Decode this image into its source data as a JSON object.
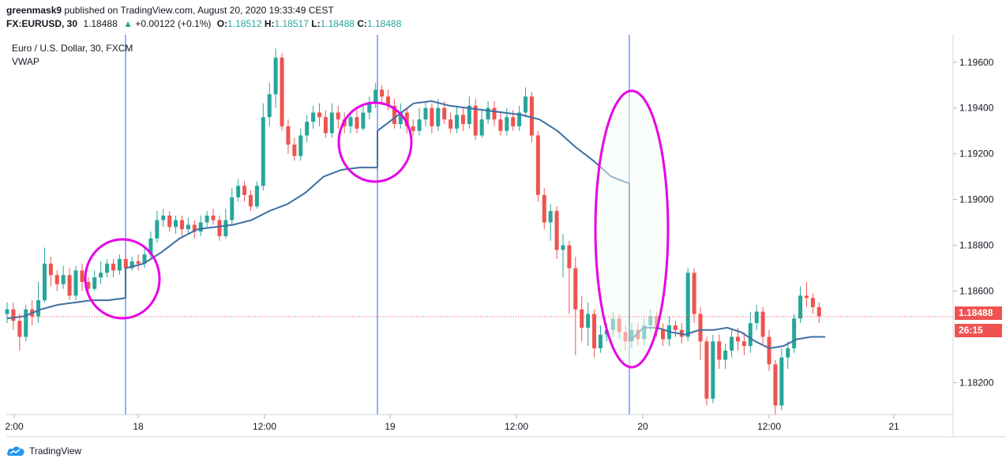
{
  "header": {
    "author": "greenmask9",
    "published": "published on TradingView.com, August 20, 2020 19:33:49 CEST",
    "symbol": "FX:EURUSD, 30",
    "last": "1.18488",
    "change_arrow": "▲",
    "change": "+0.00122 (+0.1%)",
    "o_label": "O:",
    "o_value": "1.18512",
    "h_label": "H:",
    "h_value": "1.18517",
    "l_label": "L:",
    "l_value": "1.18488",
    "c_label": "C:",
    "c_value": "1.18488"
  },
  "legend": {
    "title": "Euro / U.S. Dollar, 30, FXCM",
    "indicator": "VWAP"
  },
  "price_tags": {
    "last_price": "1.18488",
    "countdown": "26:15"
  },
  "footer": {
    "brand": "TradingView",
    "logo_icon": "tradingview-cloud-icon"
  },
  "colors": {
    "up": "#26a69a",
    "down": "#ef5350",
    "vwap": "#3d6fa3",
    "annotation": "#e600e6",
    "session_line": "#2962ff",
    "last_price_line": "#ef5350"
  },
  "chart_data": {
    "type": "candlestick",
    "instrument": "Euro / U.S. Dollar, 30, FXCM",
    "ylim": [
      1.1806,
      1.1972
    ],
    "y_ticks": [
      "1.19600",
      "1.19400",
      "1.19200",
      "1.19000",
      "1.18800",
      "1.18600",
      "1.18200"
    ],
    "x_ticks": [
      "2:00",
      "18",
      "12:00",
      "19",
      "12:00",
      "20",
      "12:00",
      "21"
    ],
    "session_starts": [
      "18",
      "19",
      "20"
    ],
    "last_price": 1.18488,
    "series": [
      {
        "name": "VWAP",
        "segments": [
          [
            1.1848,
            1.1849,
            1.1852,
            1.1854,
            1.1855,
            1.1856,
            1.1856,
            1.1857
          ],
          [
            1.187,
            1.1872,
            1.1877,
            1.1883,
            1.1887,
            1.1888,
            1.1889,
            1.1891,
            1.1895,
            1.1898,
            1.1903,
            1.191,
            1.1913,
            1.1914,
            1.1914
          ],
          [
            1.193,
            1.1936,
            1.1942,
            1.1943,
            1.1941,
            1.194,
            1.1939,
            1.1938,
            1.1937,
            1.1935,
            1.193,
            1.1923,
            1.1917,
            1.191,
            1.1907
          ],
          [
            1.1838,
            1.1844,
            1.1844,
            1.1842,
            1.1841,
            1.1843,
            1.1843,
            1.1844,
            1.1842,
            1.1838,
            1.1835,
            1.1836,
            1.1839,
            1.184,
            1.184
          ]
        ]
      }
    ],
    "candles": [
      [
        1.185,
        1.1852,
        1.1846,
        1.1855
      ],
      [
        1.1852,
        1.1847,
        1.1843,
        1.1855
      ],
      [
        1.1847,
        1.184,
        1.1834,
        1.185
      ],
      [
        1.184,
        1.1852,
        1.1838,
        1.1854
      ],
      [
        1.1852,
        1.1849,
        1.1845,
        1.1856
      ],
      [
        1.1849,
        1.1856,
        1.1846,
        1.1864
      ],
      [
        1.1856,
        1.1872,
        1.1855,
        1.1879
      ],
      [
        1.1872,
        1.1867,
        1.1862,
        1.1875
      ],
      [
        1.1867,
        1.1863,
        1.186,
        1.1869
      ],
      [
        1.1863,
        1.1867,
        1.1861,
        1.1871
      ],
      [
        1.1867,
        1.1858,
        1.1856,
        1.187
      ],
      [
        1.1858,
        1.1869,
        1.1856,
        1.1871
      ],
      [
        1.1869,
        1.1864,
        1.186,
        1.1872
      ],
      [
        1.1864,
        1.1861,
        1.1859,
        1.1866
      ],
      [
        1.1861,
        1.1866,
        1.186,
        1.1869
      ],
      [
        1.1866,
        1.1868,
        1.1863,
        1.1873
      ],
      [
        1.1868,
        1.1872,
        1.1866,
        1.1874
      ],
      [
        1.1872,
        1.1869,
        1.1866,
        1.1874
      ],
      [
        1.1869,
        1.1874,
        1.1867,
        1.1876
      ],
      [
        1.1874,
        1.187,
        1.1868,
        1.1876
      ],
      [
        1.187,
        1.1873,
        1.1869,
        1.1875
      ],
      [
        1.1873,
        1.1872,
        1.1869,
        1.1876
      ],
      [
        1.1872,
        1.1876,
        1.187,
        1.1879
      ],
      [
        1.1876,
        1.1883,
        1.1874,
        1.1886
      ],
      [
        1.1883,
        1.1891,
        1.1881,
        1.1895
      ],
      [
        1.1891,
        1.1893,
        1.1888,
        1.1896
      ],
      [
        1.1893,
        1.1888,
        1.1886,
        1.1895
      ],
      [
        1.1888,
        1.1891,
        1.1885,
        1.1893
      ],
      [
        1.1891,
        1.1887,
        1.1884,
        1.1893
      ],
      [
        1.1887,
        1.1889,
        1.1885,
        1.1892
      ],
      [
        1.1889,
        1.1886,
        1.1883,
        1.1891
      ],
      [
        1.1886,
        1.189,
        1.1884,
        1.1893
      ],
      [
        1.189,
        1.1893,
        1.1888,
        1.1895
      ],
      [
        1.1893,
        1.1891,
        1.1889,
        1.1896
      ],
      [
        1.1891,
        1.1884,
        1.1882,
        1.1893
      ],
      [
        1.1884,
        1.1891,
        1.1883,
        1.1896
      ],
      [
        1.1891,
        1.1901,
        1.1889,
        1.1905
      ],
      [
        1.1901,
        1.1906,
        1.1899,
        1.1909
      ],
      [
        1.1906,
        1.1902,
        1.1899,
        1.1908
      ],
      [
        1.1902,
        1.1897,
        1.1895,
        1.1904
      ],
      [
        1.1897,
        1.1906,
        1.1896,
        1.1908
      ],
      [
        1.1906,
        1.1936,
        1.1904,
        1.1942
      ],
      [
        1.1936,
        1.1946,
        1.1932,
        1.1951
      ],
      [
        1.1946,
        1.1962,
        1.194,
        1.1966
      ],
      [
        1.1962,
        1.1932,
        1.193,
        1.1964
      ],
      [
        1.1932,
        1.1924,
        1.192,
        1.1935
      ],
      [
        1.1924,
        1.1919,
        1.1917,
        1.1927
      ],
      [
        1.1919,
        1.1928,
        1.1917,
        1.1931
      ],
      [
        1.1928,
        1.1934,
        1.1925,
        1.1937
      ],
      [
        1.1934,
        1.1938,
        1.1931,
        1.1941
      ],
      [
        1.1938,
        1.1936,
        1.1932,
        1.1942
      ],
      [
        1.1936,
        1.1929,
        1.1927,
        1.1939
      ],
      [
        1.1929,
        1.1938,
        1.1927,
        1.1942
      ],
      [
        1.1938,
        1.1935,
        1.1931,
        1.1941
      ],
      [
        1.1935,
        1.1932,
        1.1929,
        1.1938
      ],
      [
        1.1932,
        1.1936,
        1.1929,
        1.1938
      ],
      [
        1.1936,
        1.1931,
        1.1929,
        1.1939
      ],
      [
        1.1931,
        1.1938,
        1.193,
        1.1941
      ],
      [
        1.1938,
        1.1942,
        1.1935,
        1.1945
      ],
      [
        1.1942,
        1.1948,
        1.194,
        1.1951
      ],
      [
        1.1948,
        1.1945,
        1.1942,
        1.195
      ],
      [
        1.1945,
        1.1941,
        1.1939,
        1.1948
      ],
      [
        1.1941,
        1.1933,
        1.1931,
        1.1944
      ],
      [
        1.1933,
        1.1938,
        1.1931,
        1.1942
      ],
      [
        1.1938,
        1.1932,
        1.1929,
        1.194
      ],
      [
        1.1932,
        1.193,
        1.1928,
        1.1935
      ],
      [
        1.193,
        1.1935,
        1.1928,
        1.194
      ],
      [
        1.1935,
        1.194,
        1.1932,
        1.1943
      ],
      [
        1.194,
        1.1932,
        1.1929,
        1.1942
      ],
      [
        1.1932,
        1.194,
        1.193,
        1.1944
      ],
      [
        1.194,
        1.1935,
        1.1933,
        1.1943
      ],
      [
        1.1935,
        1.1931,
        1.1929,
        1.1938
      ],
      [
        1.1931,
        1.1937,
        1.1929,
        1.1941
      ],
      [
        1.1937,
        1.1933,
        1.193,
        1.194
      ],
      [
        1.1933,
        1.1941,
        1.1931,
        1.1945
      ],
      [
        1.1941,
        1.1928,
        1.1926,
        1.1944
      ],
      [
        1.1928,
        1.1935,
        1.1927,
        1.1939
      ],
      [
        1.1935,
        1.194,
        1.1933,
        1.1943
      ],
      [
        1.194,
        1.1935,
        1.1932,
        1.1943
      ],
      [
        1.1935,
        1.193,
        1.1928,
        1.1938
      ],
      [
        1.193,
        1.1936,
        1.1928,
        1.194
      ],
      [
        1.1936,
        1.1932,
        1.193,
        1.1939
      ],
      [
        1.1932,
        1.1938,
        1.193,
        1.1941
      ],
      [
        1.1938,
        1.1945,
        1.1936,
        1.1949
      ],
      [
        1.1945,
        1.1928,
        1.1925,
        1.1947
      ],
      [
        1.1928,
        1.1902,
        1.1899,
        1.193
      ],
      [
        1.1902,
        1.189,
        1.1887,
        1.1905
      ],
      [
        1.189,
        1.1895,
        1.1882,
        1.1898
      ],
      [
        1.1895,
        1.1878,
        1.1874,
        1.1897
      ],
      [
        1.1878,
        1.188,
        1.1866,
        1.1885
      ],
      [
        1.188,
        1.187,
        1.185,
        1.1882
      ],
      [
        1.187,
        1.1852,
        1.1832,
        1.1875
      ],
      [
        1.1852,
        1.1844,
        1.1838,
        1.1858
      ],
      [
        1.1844,
        1.185,
        1.1836,
        1.1855
      ],
      [
        1.185,
        1.1835,
        1.1831,
        1.1852
      ],
      [
        1.1835,
        1.1841,
        1.1833,
        1.1845
      ],
      [
        1.1841,
        1.1843,
        1.1838,
        1.1846
      ],
      [
        1.1843,
        1.1848,
        1.184,
        1.1851
      ],
      [
        1.1848,
        1.1842,
        1.1839,
        1.185
      ],
      [
        1.1842,
        1.1838,
        1.1834,
        1.1845
      ],
      [
        1.1838,
        1.1843,
        1.1835,
        1.1846
      ],
      [
        1.1843,
        1.1839,
        1.1836,
        1.1846
      ],
      [
        1.1839,
        1.1845,
        1.1836,
        1.1848
      ],
      [
        1.1845,
        1.1849,
        1.1842,
        1.1852
      ],
      [
        1.1849,
        1.1843,
        1.184,
        1.1851
      ],
      [
        1.1843,
        1.1839,
        1.1836,
        1.1846
      ],
      [
        1.1839,
        1.1845,
        1.1836,
        1.1849
      ],
      [
        1.1845,
        1.1843,
        1.184,
        1.1847
      ],
      [
        1.1843,
        1.184,
        1.1837,
        1.1846
      ],
      [
        1.184,
        1.1868,
        1.1838,
        1.187
      ],
      [
        1.1868,
        1.185,
        1.1846,
        1.187
      ],
      [
        1.185,
        1.1838,
        1.183,
        1.1853
      ],
      [
        1.1838,
        1.1813,
        1.181,
        1.184
      ],
      [
        1.1813,
        1.1838,
        1.1811,
        1.1841
      ],
      [
        1.1838,
        1.183,
        1.1826,
        1.1841
      ],
      [
        1.183,
        1.1834,
        1.1826,
        1.1837
      ],
      [
        1.1834,
        1.184,
        1.1831,
        1.1843
      ],
      [
        1.184,
        1.1838,
        1.1834,
        1.1844
      ],
      [
        1.1838,
        1.1836,
        1.1832,
        1.1842
      ],
      [
        1.1836,
        1.1846,
        1.1833,
        1.1851
      ],
      [
        1.1846,
        1.1851,
        1.1843,
        1.1854
      ],
      [
        1.1851,
        1.184,
        1.1837,
        1.1853
      ],
      [
        1.184,
        1.1828,
        1.1825,
        1.1843
      ],
      [
        1.1828,
        1.181,
        1.1806,
        1.183
      ],
      [
        1.181,
        1.1831,
        1.1808,
        1.1835
      ],
      [
        1.1831,
        1.1835,
        1.1826,
        1.1838
      ],
      [
        1.1835,
        1.1848,
        1.1833,
        1.185
      ],
      [
        1.1848,
        1.1858,
        1.1846,
        1.1862
      ],
      [
        1.1858,
        1.1857,
        1.1853,
        1.1864
      ],
      [
        1.1857,
        1.1853,
        1.185,
        1.1859
      ],
      [
        1.1853,
        1.1849,
        1.1846,
        1.1855
      ]
    ]
  }
}
